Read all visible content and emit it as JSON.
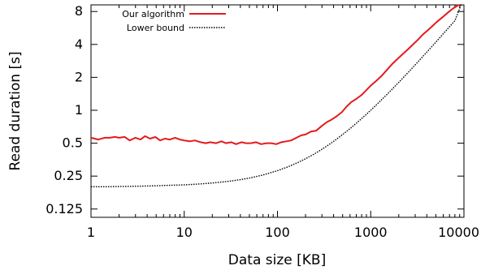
{
  "chart_data": {
    "type": "line",
    "xlabel": "Data size [KB]",
    "ylabel": "Read duration [s]",
    "x_scale": "log",
    "y_scale": "log2",
    "xlim": [
      1,
      10000
    ],
    "ylim": [
      0.105,
      9.2
    ],
    "x_ticks": [
      {
        "value": 1,
        "label": "1"
      },
      {
        "value": 10,
        "label": "10"
      },
      {
        "value": 100,
        "label": "100"
      },
      {
        "value": 1000,
        "label": "1000"
      },
      {
        "value": 10000,
        "label": "10000"
      }
    ],
    "y_ticks": [
      {
        "value": 0.125,
        "label": "0.125"
      },
      {
        "value": 0.25,
        "label": "0.25"
      },
      {
        "value": 0.5,
        "label": "0.5"
      },
      {
        "value": 1,
        "label": "1"
      },
      {
        "value": 2,
        "label": "2"
      },
      {
        "value": 4,
        "label": "4"
      },
      {
        "value": 8,
        "label": "8"
      }
    ],
    "grid": false,
    "legend_position": "top-left",
    "series": [
      {
        "name": "Our algorithm",
        "color": "#e41a1c",
        "style": "solid",
        "x": [
          1,
          1.2,
          1.4,
          1.6,
          1.8,
          2,
          2.3,
          2.6,
          3,
          3.4,
          3.8,
          4.3,
          4.9,
          5.5,
          6.2,
          7,
          8,
          9,
          10,
          11.5,
          13,
          15,
          17,
          19,
          22,
          25,
          28,
          32,
          36,
          41,
          46,
          52,
          59,
          67,
          76,
          86,
          97,
          110,
          125,
          140,
          160,
          180,
          200,
          230,
          260,
          300,
          340,
          380,
          430,
          490,
          550,
          620,
          700,
          800,
          900,
          1000,
          1150,
          1300,
          1500,
          1700,
          1900,
          2200,
          2500,
          2800,
          3200,
          3600,
          4100,
          4600,
          5200,
          5900,
          6700,
          7600,
          8600,
          9300
        ],
        "y": [
          0.56,
          0.54,
          0.56,
          0.56,
          0.57,
          0.56,
          0.57,
          0.53,
          0.56,
          0.54,
          0.58,
          0.55,
          0.57,
          0.53,
          0.55,
          0.54,
          0.56,
          0.54,
          0.53,
          0.52,
          0.53,
          0.51,
          0.5,
          0.51,
          0.5,
          0.52,
          0.5,
          0.51,
          0.49,
          0.51,
          0.5,
          0.5,
          0.51,
          0.49,
          0.5,
          0.5,
          0.49,
          0.51,
          0.52,
          0.53,
          0.56,
          0.59,
          0.6,
          0.64,
          0.65,
          0.72,
          0.78,
          0.82,
          0.88,
          0.96,
          1.08,
          1.19,
          1.27,
          1.38,
          1.53,
          1.68,
          1.86,
          2.05,
          2.35,
          2.65,
          2.9,
          3.25,
          3.6,
          3.95,
          4.4,
          4.9,
          5.4,
          5.9,
          6.5,
          7.1,
          7.8,
          8.5,
          9.1,
          9.2
        ]
      },
      {
        "name": "Lower bound",
        "color": "#000000",
        "style": "dotted",
        "x": [
          1,
          1.5,
          2,
          3,
          4,
          5,
          7,
          10,
          15,
          20,
          30,
          40,
          50,
          70,
          100,
          130,
          170,
          200,
          250,
          300,
          350,
          400,
          500,
          600,
          700,
          850,
          1000,
          1200,
          1500,
          2000,
          2500,
          3000,
          4000,
          5000,
          6000,
          7000,
          8000,
          9300
        ],
        "y": [
          0.2,
          0.2,
          0.201,
          0.202,
          0.203,
          0.204,
          0.206,
          0.208,
          0.212,
          0.216,
          0.224,
          0.232,
          0.24,
          0.256,
          0.28,
          0.304,
          0.336,
          0.36,
          0.4,
          0.44,
          0.48,
          0.52,
          0.6,
          0.68,
          0.76,
          0.88,
          1.0,
          1.16,
          1.4,
          1.8,
          2.2,
          2.6,
          3.4,
          4.2,
          5.0,
          5.8,
          6.6,
          9.2
        ]
      }
    ]
  }
}
